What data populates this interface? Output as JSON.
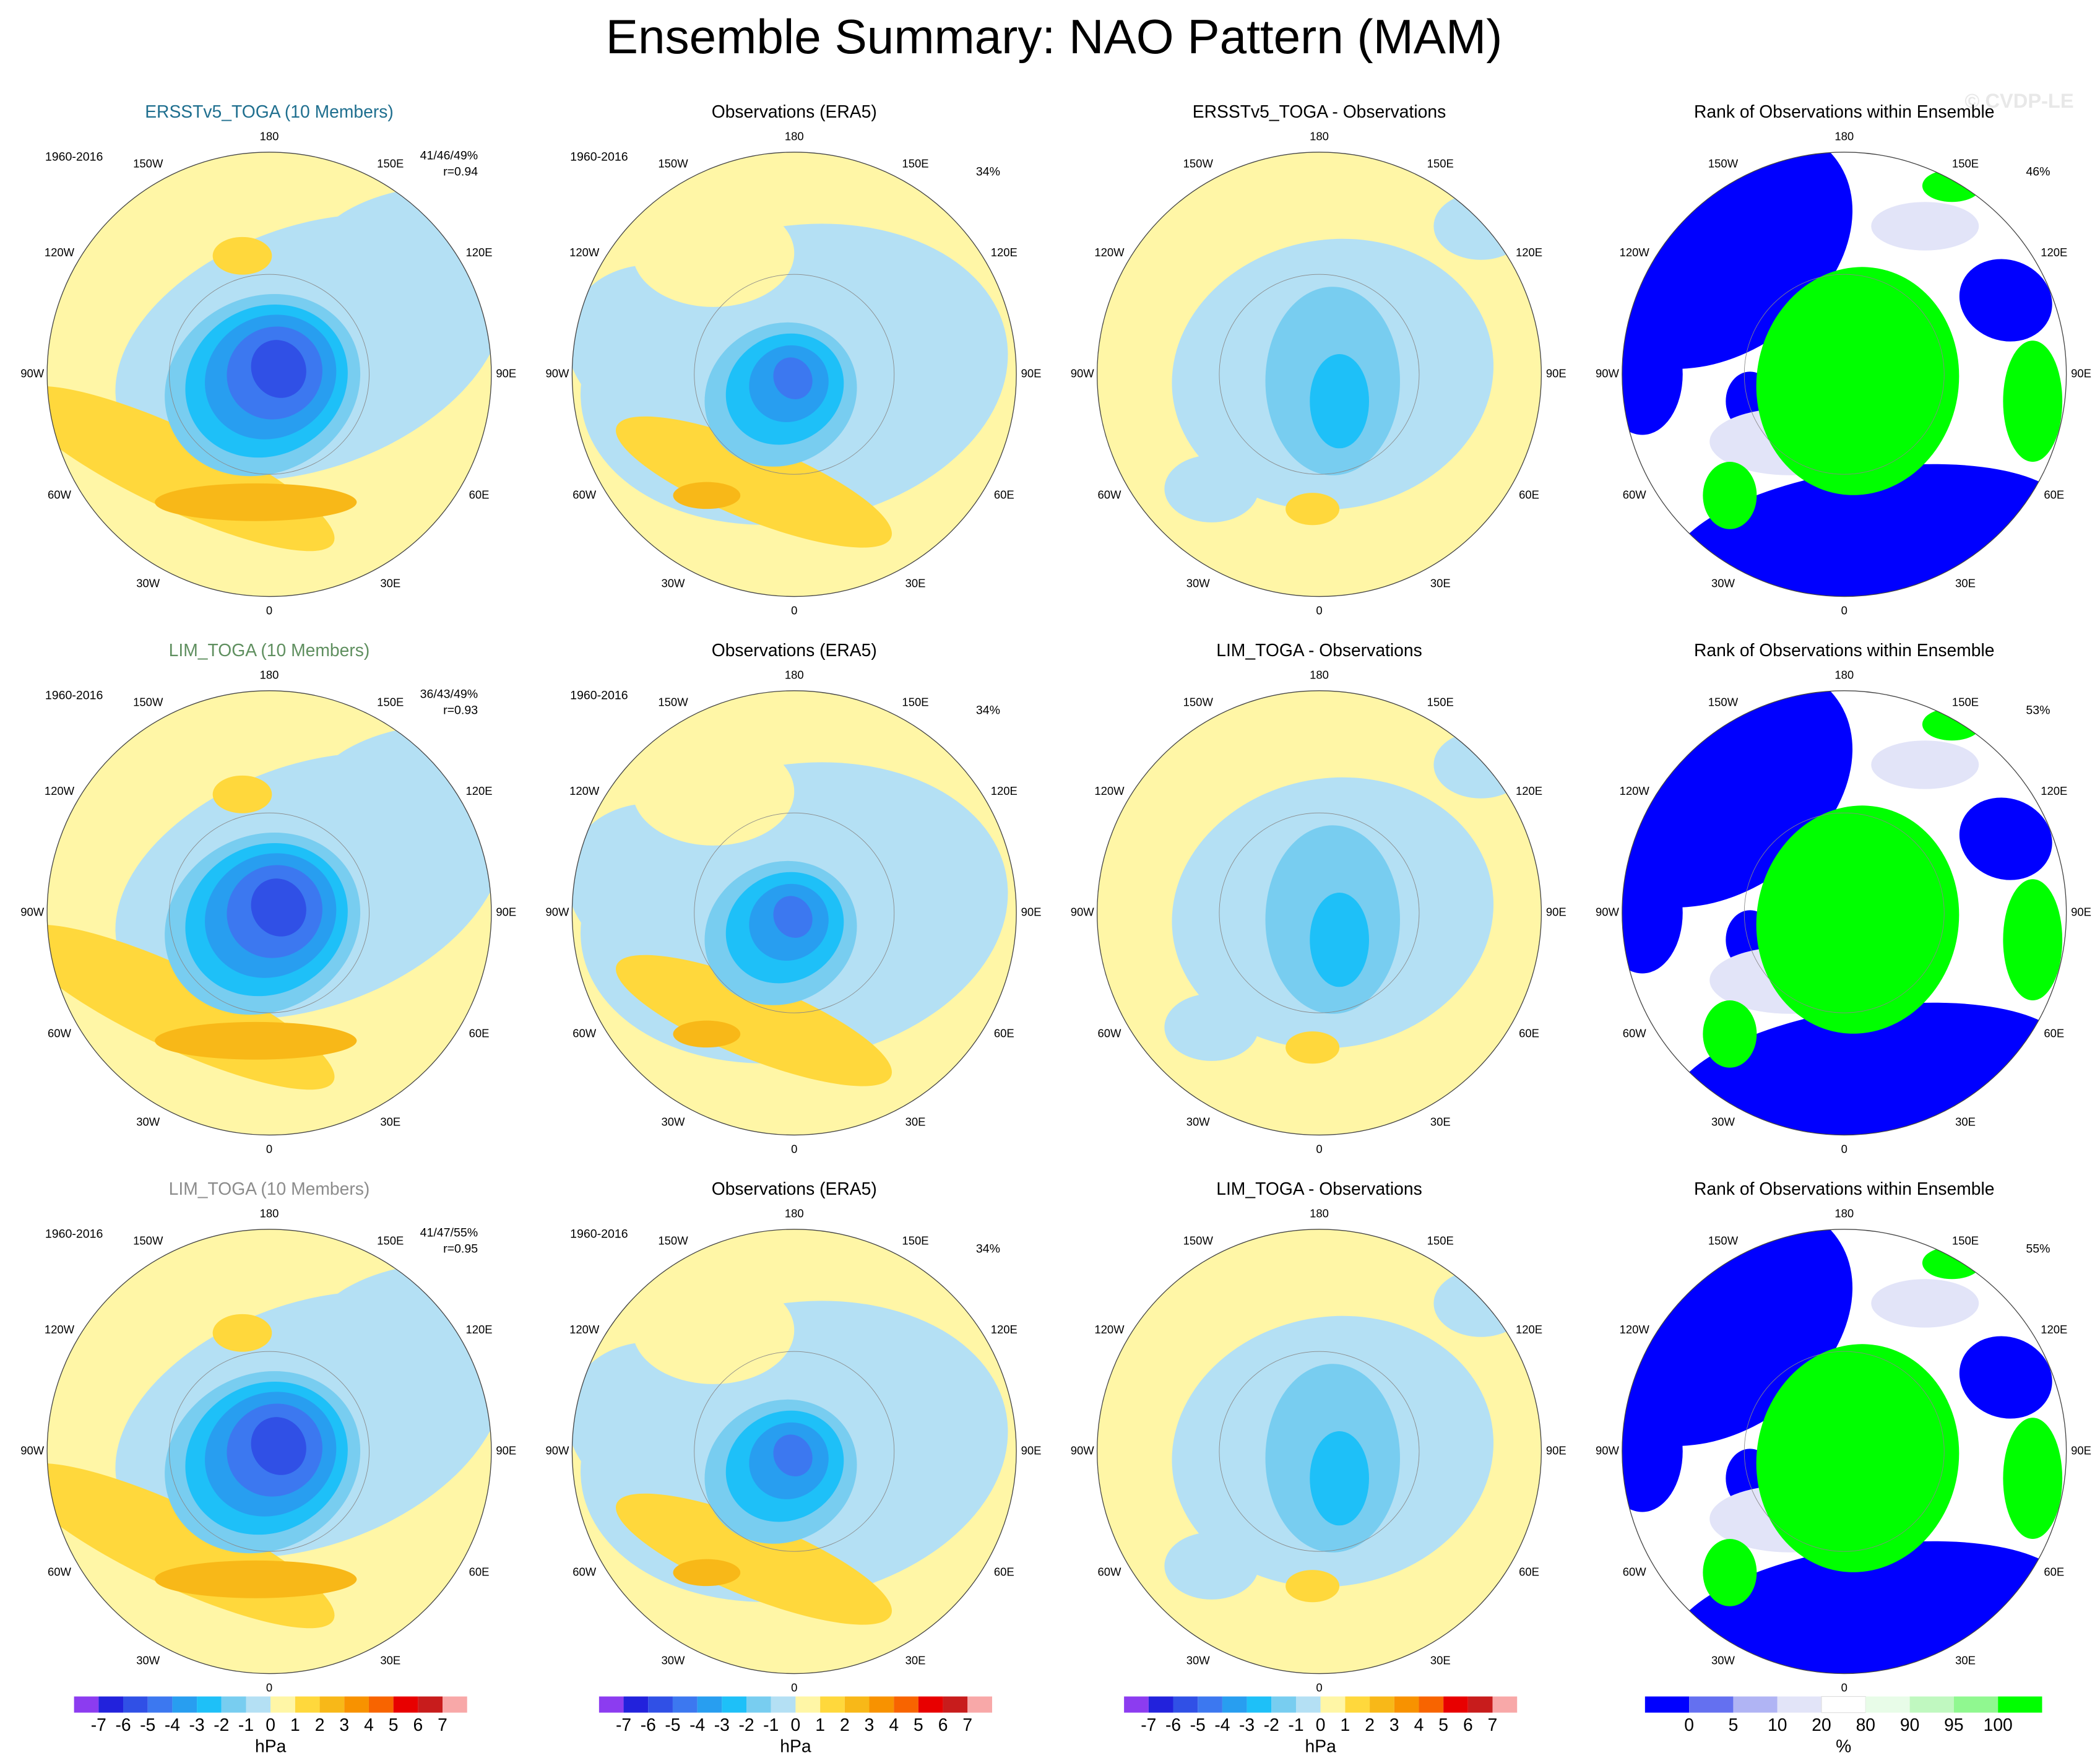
{
  "title": "Ensemble Summary: NAO Pattern (MAM)",
  "watermark": "© CVDP-LE",
  "longitude_labels": [
    "180",
    "150E",
    "120E",
    "90E",
    "60E",
    "30E",
    "0",
    "30W",
    "60W",
    "90W",
    "120W",
    "150W"
  ],
  "rows": [
    {
      "panels": [
        {
          "title": "ERSSTv5_TOGA (10 Members)",
          "title_color": "#1f6f8f",
          "period": "1960-2016",
          "stat": "41/46/49%",
          "correlation": "r=0.94"
        },
        {
          "title": "Observations (ERA5)",
          "period": "1960-2016",
          "stat": "34%"
        },
        {
          "title": "ERSSTv5_TOGA - Observations"
        },
        {
          "title": "Rank of Observations within Ensemble",
          "stat": "46%"
        }
      ]
    },
    {
      "panels": [
        {
          "title": "LIM_TOGA (10 Members)",
          "title_color": "#5f8f5f",
          "period": "1960-2016",
          "stat": "36/43/49%",
          "correlation": "r=0.93"
        },
        {
          "title": "Observations (ERA5)",
          "period": "1960-2016",
          "stat": "34%"
        },
        {
          "title": "LIM_TOGA - Observations"
        },
        {
          "title": "Rank of Observations within Ensemble",
          "stat": "53%"
        }
      ]
    },
    {
      "panels": [
        {
          "title": "LIM_TOGA (10 Members)",
          "title_color": "#8c8c8c",
          "period": "1960-2016",
          "stat": "41/47/55%",
          "correlation": "r=0.95"
        },
        {
          "title": "Observations (ERA5)",
          "period": "1960-2016",
          "stat": "34%"
        },
        {
          "title": "LIM_TOGA - Observations"
        },
        {
          "title": "Rank of Observations within Ensemble",
          "stat": "55%"
        }
      ]
    }
  ],
  "colorbars": [
    {
      "colors": [
        "#8c3cf0",
        "#2222dc",
        "#3050e6",
        "#3c78f0",
        "#289ef0",
        "#1ec0f8",
        "#78cdf0",
        "#b4e0f4",
        "#fff6a6",
        "#ffd83c",
        "#f8b818",
        "#f89200",
        "#f86400",
        "#e80000",
        "#c81c1c",
        "#f8a8a8"
      ],
      "labels": [
        -7,
        -6,
        -5,
        -4,
        -3,
        -2,
        -1,
        0,
        1,
        2,
        3,
        4,
        5,
        6,
        7
      ],
      "unit": "hPa"
    },
    {
      "colors": [
        "#8c3cf0",
        "#2222dc",
        "#3050e6",
        "#3c78f0",
        "#289ef0",
        "#1ec0f8",
        "#78cdf0",
        "#b4e0f4",
        "#fff6a6",
        "#ffd83c",
        "#f8b818",
        "#f89200",
        "#f86400",
        "#e80000",
        "#c81c1c",
        "#f8a8a8"
      ],
      "labels": [
        -7,
        -6,
        -5,
        -4,
        -3,
        -2,
        -1,
        0,
        1,
        2,
        3,
        4,
        5,
        6,
        7
      ],
      "unit": "hPa"
    },
    {
      "colors": [
        "#8c3cf0",
        "#2222dc",
        "#3050e6",
        "#3c78f0",
        "#289ef0",
        "#1ec0f8",
        "#78cdf0",
        "#b4e0f4",
        "#fff6a6",
        "#ffd83c",
        "#f8b818",
        "#f89200",
        "#f86400",
        "#e80000",
        "#c81c1c",
        "#f8a8a8"
      ],
      "labels": [
        -7,
        -6,
        -5,
        -4,
        -3,
        -2,
        -1,
        0,
        1,
        2,
        3,
        4,
        5,
        6,
        7
      ],
      "unit": "hPa"
    },
    {
      "colors": [
        "#0000ff",
        "#6470f0",
        "#b0b4f4",
        "#e2e4f8",
        "#ffffff",
        "#e8fce8",
        "#c0f8c0",
        "#90f890",
        "#00ff00"
      ],
      "labels": [
        0,
        5,
        10,
        20,
        80,
        90,
        95,
        100
      ],
      "unit": "%"
    }
  ]
}
